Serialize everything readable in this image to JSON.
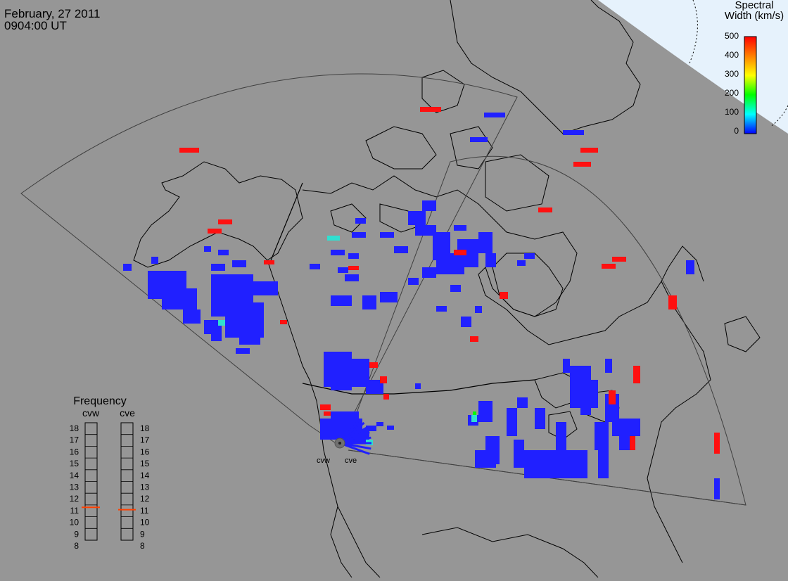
{
  "header": {
    "date": "February, 27 2011",
    "time": "0904:00 UT"
  },
  "colorbar": {
    "title_line1": "Spectral",
    "title_line2": "Width (km/s)",
    "ticks": [
      "500",
      "400",
      "300",
      "200",
      "100",
      "0"
    ],
    "colors": [
      "#ff0000",
      "#ff8000",
      "#ffff00",
      "#00ff00",
      "#00ffff",
      "#0000ff"
    ]
  },
  "radars": [
    {
      "code": "cvw",
      "label": "cvw"
    },
    {
      "code": "cve",
      "label": "cve"
    }
  ],
  "frequency_panel": {
    "title": "Frequency",
    "col_left": "cvw",
    "col_right": "cve",
    "scale": [
      "18",
      "17",
      "16",
      "15",
      "14",
      "13",
      "12",
      "11",
      "10",
      "9",
      "8"
    ],
    "cvw_mhz": 10.8,
    "cve_mhz": 10.6,
    "indicator_color": "#ff4000"
  },
  "colors": {
    "background": "#969696",
    "coastline": "#000000",
    "fov": "#404040",
    "sky": "#e0f0ff",
    "low_width": "#2020ff",
    "high_width": "#ff1010",
    "mid_width": "#30e0d0"
  }
}
